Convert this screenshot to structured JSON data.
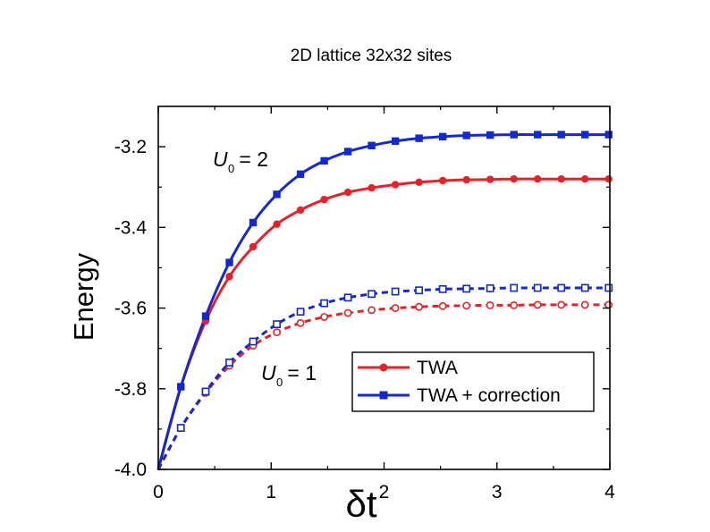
{
  "page_title": "2D lattice 32x32 sites",
  "chart_data": {
    "type": "line",
    "title": "",
    "xlabel": "δt",
    "ylabel": "Energy",
    "xlim": [
      0,
      4
    ],
    "ylim": [
      -4.0,
      -3.1
    ],
    "x_ticks": [
      "0",
      "1",
      "2",
      "3",
      "4"
    ],
    "y_ticks": [
      "-4.0",
      "-3.8",
      "-3.6",
      "-3.4",
      "-3.2"
    ],
    "x_tick_values": [
      0,
      1,
      2,
      3,
      4
    ],
    "y_tick_values": [
      -4.0,
      -3.8,
      -3.6,
      -3.4,
      -3.2
    ],
    "grid": false,
    "legend_position": "bottom-right",
    "legend": [
      {
        "label": "TWA",
        "color": "#e8202a",
        "marker": "circle"
      },
      {
        "label": "TWA + correction",
        "color": "#1428d2",
        "marker": "square"
      }
    ],
    "annotations": [
      {
        "text_main": "U",
        "text_sub": "0",
        "text_rest": " = 2",
        "refers_to": "U0 = 2 curves"
      },
      {
        "text_main": "U",
        "text_sub": "0",
        "text_rest": " = 1",
        "refers_to": "U0 = 1 curves"
      }
    ],
    "series": [
      {
        "group": "U0=2",
        "legend_label": "TWA",
        "color": "#e8202a",
        "marker": "circle",
        "filled": true,
        "dashed": false,
        "x": [
          0.2,
          0.42,
          0.63,
          0.84,
          1.05,
          1.26,
          1.47,
          1.68,
          1.89,
          2.1,
          2.31,
          2.52,
          2.73,
          2.94,
          3.15,
          3.36,
          3.57,
          3.78,
          3.99
        ],
        "y": [
          -3.795,
          -3.632,
          -3.522,
          -3.448,
          -3.392,
          -3.357,
          -3.331,
          -3.313,
          -3.302,
          -3.294,
          -3.288,
          -3.284,
          -3.282,
          -3.281,
          -3.28,
          -3.28,
          -3.28,
          -3.28,
          -3.28
        ]
      },
      {
        "group": "U0=2",
        "legend_label": "TWA + correction",
        "color": "#1428d2",
        "marker": "square",
        "filled": true,
        "dashed": false,
        "x": [
          0.2,
          0.42,
          0.63,
          0.84,
          1.05,
          1.26,
          1.47,
          1.68,
          1.89,
          2.1,
          2.31,
          2.52,
          2.73,
          2.94,
          3.15,
          3.36,
          3.57,
          3.78,
          3.99
        ],
        "y": [
          -3.795,
          -3.62,
          -3.487,
          -3.388,
          -3.318,
          -3.268,
          -3.235,
          -3.212,
          -3.197,
          -3.186,
          -3.179,
          -3.175,
          -3.172,
          -3.171,
          -3.17,
          -3.17,
          -3.17,
          -3.17,
          -3.17
        ]
      },
      {
        "group": "U0=1",
        "legend_label": "TWA",
        "color": "#e8202a",
        "marker": "circle",
        "filled": false,
        "dashed": true,
        "x": [
          0.2,
          0.42,
          0.63,
          0.84,
          1.05,
          1.26,
          1.47,
          1.68,
          1.89,
          2.1,
          2.31,
          2.52,
          2.73,
          2.94,
          3.15,
          3.36,
          3.57,
          3.78,
          3.99
        ],
        "y": [
          -3.897,
          -3.81,
          -3.743,
          -3.693,
          -3.66,
          -3.637,
          -3.622,
          -3.612,
          -3.605,
          -3.6,
          -3.597,
          -3.595,
          -3.594,
          -3.593,
          -3.593,
          -3.592,
          -3.592,
          -3.592,
          -3.592
        ]
      },
      {
        "group": "U0=1",
        "legend_label": "TWA + correction",
        "color": "#1428d2",
        "marker": "square",
        "filled": false,
        "dashed": true,
        "x": [
          0.2,
          0.42,
          0.63,
          0.84,
          1.05,
          1.26,
          1.47,
          1.68,
          1.89,
          2.1,
          2.31,
          2.52,
          2.73,
          2.94,
          3.15,
          3.36,
          3.57,
          3.78,
          3.99
        ],
        "y": [
          -3.897,
          -3.807,
          -3.735,
          -3.683,
          -3.64,
          -3.609,
          -3.588,
          -3.574,
          -3.565,
          -3.559,
          -3.556,
          -3.553,
          -3.552,
          -3.551,
          -3.55,
          -3.55,
          -3.55,
          -3.55,
          -3.55
        ]
      }
    ]
  }
}
